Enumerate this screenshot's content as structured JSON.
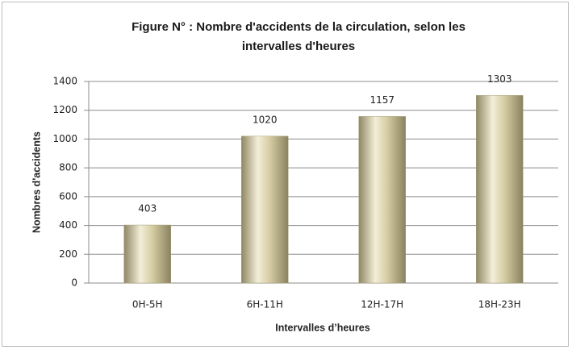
{
  "chart_data": {
    "type": "bar",
    "title": "Figure N° : Nombre d'accidents de la circulation, selon les intervalles d'heures",
    "xlabel": "Intervalles d’heures",
    "ylabel": "Nombres d'accidents",
    "categories": [
      "0H-5H",
      "6H-11H",
      "12H-17H",
      "18H-23H"
    ],
    "values": [
      403,
      1020,
      1157,
      1303
    ],
    "color": "#d6cda3",
    "ylim": [
      0,
      1400
    ],
    "yticks": [
      0,
      200,
      400,
      600,
      800,
      1000,
      1200,
      1400
    ],
    "grid": true
  }
}
